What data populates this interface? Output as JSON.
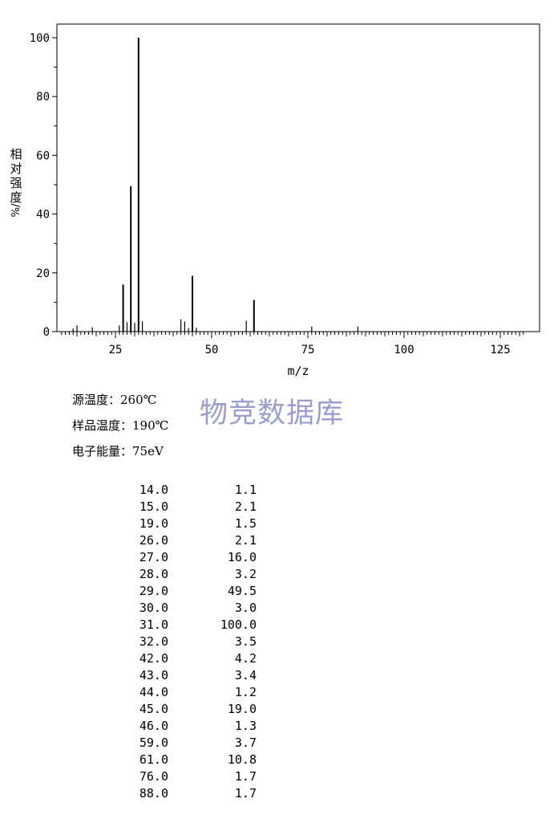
{
  "chart_data": {
    "type": "bar",
    "xlabel": "m/z",
    "ylabel_chars": [
      "相",
      "对",
      "强",
      "度"
    ],
    "ylabel_unit": "%/",
    "xlim": [
      10,
      135
    ],
    "ylim": [
      0,
      105
    ],
    "x_ticks": [
      25,
      50,
      75,
      100,
      125
    ],
    "y_ticks": [
      0,
      20,
      40,
      60,
      80,
      100
    ],
    "peaks": [
      {
        "mz": 14.0,
        "intensity": 1.1
      },
      {
        "mz": 15.0,
        "intensity": 2.1
      },
      {
        "mz": 19.0,
        "intensity": 1.5
      },
      {
        "mz": 26.0,
        "intensity": 2.1
      },
      {
        "mz": 27.0,
        "intensity": 16.0
      },
      {
        "mz": 28.0,
        "intensity": 3.2
      },
      {
        "mz": 29.0,
        "intensity": 49.5
      },
      {
        "mz": 30.0,
        "intensity": 3.0
      },
      {
        "mz": 31.0,
        "intensity": 100.0
      },
      {
        "mz": 32.0,
        "intensity": 3.5
      },
      {
        "mz": 42.0,
        "intensity": 4.2
      },
      {
        "mz": 43.0,
        "intensity": 3.4
      },
      {
        "mz": 44.0,
        "intensity": 1.2
      },
      {
        "mz": 45.0,
        "intensity": 19.0
      },
      {
        "mz": 46.0,
        "intensity": 1.3
      },
      {
        "mz": 59.0,
        "intensity": 3.7
      },
      {
        "mz": 61.0,
        "intensity": 10.8
      },
      {
        "mz": 76.0,
        "intensity": 1.7
      },
      {
        "mz": 88.0,
        "intensity": 1.7
      }
    ]
  },
  "conditions": {
    "source_temp": "源温度：260℃",
    "sample_temp": "样品温度：190℃",
    "electron_energy": "电子能量：75eV"
  },
  "watermark": "物竞数据库",
  "table_rows": [
    {
      "mz": "14.0",
      "intensity": "1.1"
    },
    {
      "mz": "15.0",
      "intensity": "2.1"
    },
    {
      "mz": "19.0",
      "intensity": "1.5"
    },
    {
      "mz": "26.0",
      "intensity": "2.1"
    },
    {
      "mz": "27.0",
      "intensity": "16.0"
    },
    {
      "mz": "28.0",
      "intensity": "3.2"
    },
    {
      "mz": "29.0",
      "intensity": "49.5"
    },
    {
      "mz": "30.0",
      "intensity": "3.0"
    },
    {
      "mz": "31.0",
      "intensity": "100.0"
    },
    {
      "mz": "32.0",
      "intensity": "3.5"
    },
    {
      "mz": "42.0",
      "intensity": "4.2"
    },
    {
      "mz": "43.0",
      "intensity": "3.4"
    },
    {
      "mz": "44.0",
      "intensity": "1.2"
    },
    {
      "mz": "45.0",
      "intensity": "19.0"
    },
    {
      "mz": "46.0",
      "intensity": "1.3"
    },
    {
      "mz": "59.0",
      "intensity": "3.7"
    },
    {
      "mz": "61.0",
      "intensity": "10.8"
    },
    {
      "mz": "76.0",
      "intensity": "1.7"
    },
    {
      "mz": "88.0",
      "intensity": "1.7"
    }
  ]
}
